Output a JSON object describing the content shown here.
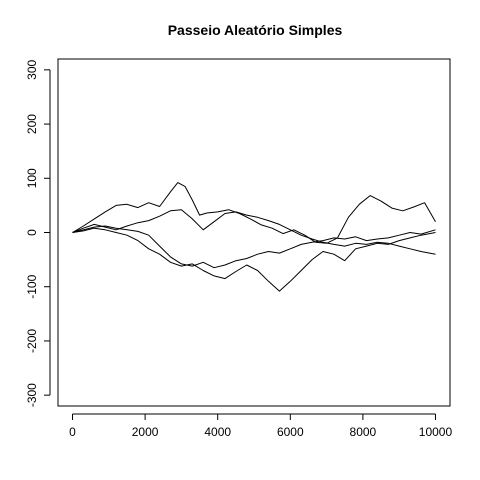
{
  "chart_data": {
    "type": "line",
    "title": "Passeio Aleatório Simples",
    "xlabel": "",
    "ylabel": "",
    "xlim": [
      -400,
      10400
    ],
    "ylim": [
      -320,
      320
    ],
    "x_ticks": [
      0,
      2000,
      4000,
      6000,
      8000,
      10000
    ],
    "y_ticks": [
      -300,
      -200,
      -100,
      0,
      100,
      200,
      300
    ],
    "grid": false,
    "legend": "none",
    "series": [
      {
        "x": [
          0,
          300,
          600,
          900,
          1200,
          1500,
          1800,
          2100,
          2400,
          2700,
          2900,
          3100,
          3300,
          3500,
          3700,
          4000,
          4300,
          4600,
          4900,
          5200,
          5500,
          5800,
          6100,
          6400,
          6700,
          7000,
          7300,
          7600,
          7900,
          8200,
          8500,
          8800,
          9100,
          9400,
          9700,
          10000
        ],
        "values": [
          0,
          12,
          25,
          38,
          50,
          52,
          46,
          55,
          48,
          75,
          92,
          85,
          60,
          32,
          36,
          38,
          42,
          35,
          25,
          14,
          8,
          -2,
          5,
          -5,
          -18,
          -20,
          -10,
          28,
          52,
          68,
          58,
          45,
          40,
          47,
          55,
          20
        ]
      },
      {
        "x": [
          0,
          300,
          600,
          900,
          1200,
          1500,
          1800,
          2100,
          2400,
          2700,
          3000,
          3300,
          3600,
          3900,
          4200,
          4500,
          4800,
          5100,
          5400,
          5700,
          6000,
          6300,
          6600,
          6900,
          7200,
          7500,
          7800,
          8100,
          8400,
          8700,
          9000,
          9300,
          9600,
          10000
        ],
        "values": [
          0,
          8,
          15,
          10,
          5,
          12,
          18,
          22,
          30,
          40,
          42,
          25,
          5,
          20,
          35,
          38,
          32,
          28,
          22,
          15,
          5,
          -5,
          -12,
          -18,
          -22,
          -25,
          -20,
          -22,
          -18,
          -20,
          -25,
          -30,
          -35,
          -40
        ]
      },
      {
        "x": [
          0,
          300,
          600,
          900,
          1200,
          1500,
          1800,
          2100,
          2400,
          2700,
          3000,
          3300,
          3600,
          3900,
          4200,
          4500,
          4800,
          5100,
          5400,
          5700,
          6000,
          6300,
          6600,
          6900,
          7200,
          7500,
          7800,
          8100,
          8400,
          8700,
          9000,
          9300,
          9600,
          10000
        ],
        "values": [
          0,
          5,
          10,
          12,
          8,
          5,
          2,
          -5,
          -25,
          -45,
          -58,
          -62,
          -55,
          -65,
          -60,
          -52,
          -48,
          -40,
          -35,
          -38,
          -30,
          -22,
          -18,
          -15,
          -10,
          -12,
          -8,
          -15,
          -12,
          -10,
          -5,
          0,
          -3,
          5
        ]
      },
      {
        "x": [
          0,
          300,
          600,
          900,
          1200,
          1500,
          1800,
          2100,
          2400,
          2700,
          3000,
          3300,
          3600,
          3900,
          4200,
          4500,
          4800,
          5100,
          5400,
          5700,
          6000,
          6300,
          6600,
          6900,
          7200,
          7500,
          7800,
          8100,
          8400,
          8700,
          9000,
          9300,
          9600,
          10000
        ],
        "values": [
          0,
          3,
          8,
          5,
          0,
          -5,
          -15,
          -30,
          -40,
          -55,
          -62,
          -58,
          -70,
          -80,
          -85,
          -72,
          -60,
          -70,
          -90,
          -108,
          -90,
          -70,
          -50,
          -35,
          -40,
          -52,
          -30,
          -25,
          -20,
          -22,
          -15,
          -10,
          -5,
          0
        ]
      }
    ]
  }
}
